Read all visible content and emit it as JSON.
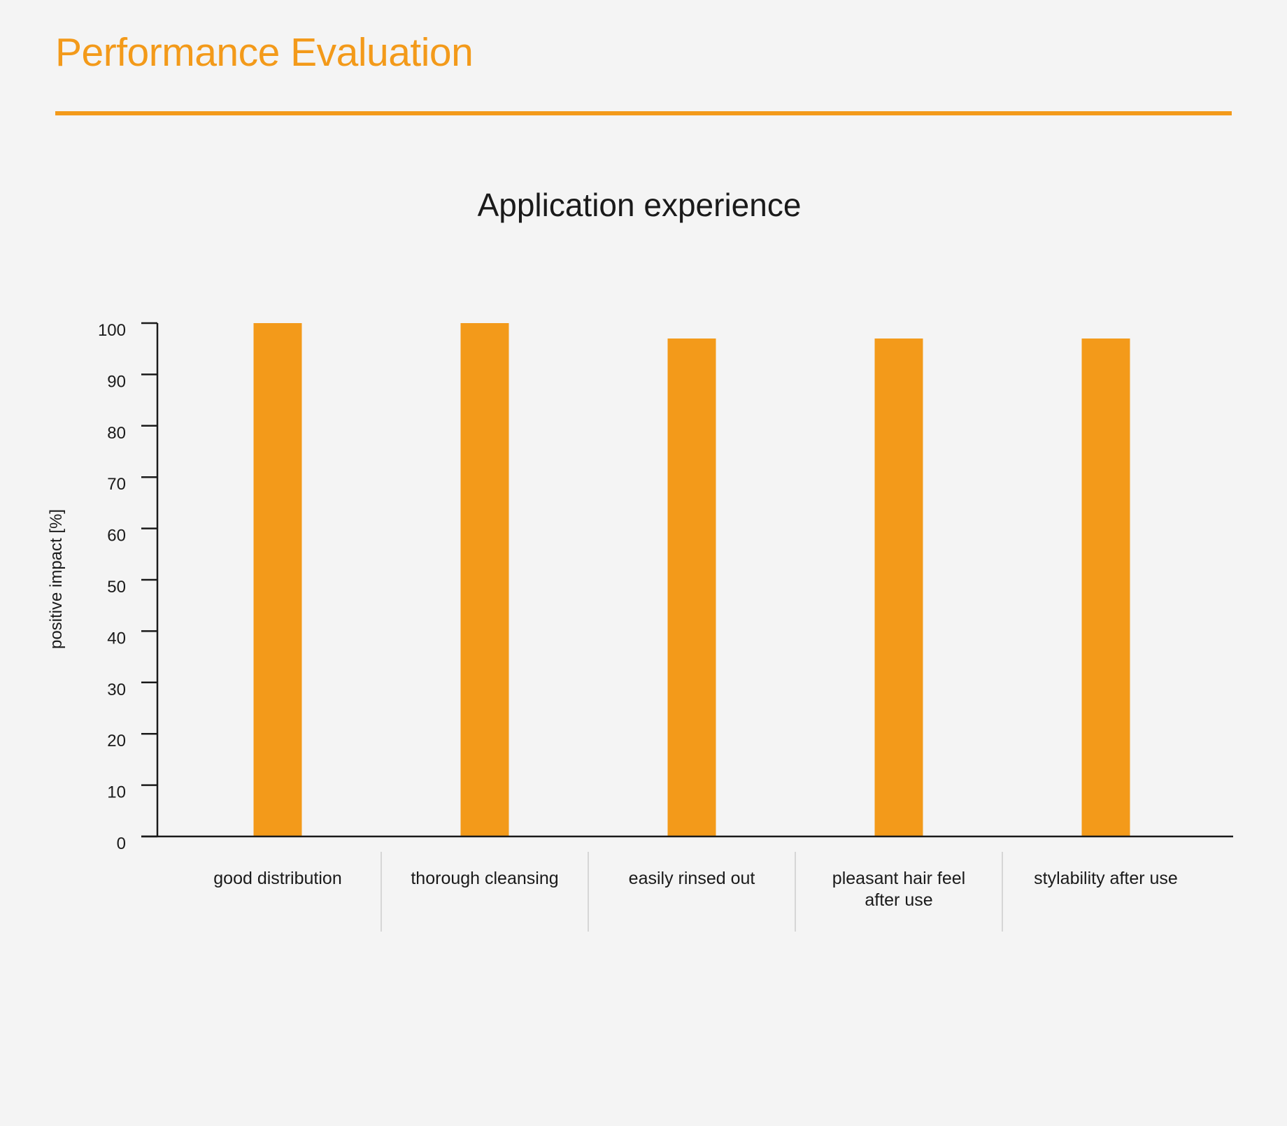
{
  "header": {
    "title": "Performance Evaluation"
  },
  "colors": {
    "accent": "#f39a1a",
    "axis": "#1a1a1a",
    "separator": "#cccccc",
    "background": "#f4f4f4"
  },
  "chart_data": {
    "type": "bar",
    "title": "Application experience",
    "xlabel": "",
    "ylabel": "positive impact [%]",
    "categories": [
      [
        "good distribution"
      ],
      [
        "thorough cleansing"
      ],
      [
        "easily rinsed out"
      ],
      [
        "pleasant hair feel",
        "after use"
      ],
      [
        "stylability after use"
      ]
    ],
    "values": [
      100,
      100,
      97,
      97,
      97
    ],
    "ylim": [
      0,
      100
    ],
    "yticks": [
      "0",
      "10",
      "20",
      "30",
      "40",
      "50",
      "60",
      "70",
      "80",
      "90",
      "100"
    ],
    "grid": false,
    "legend": "none"
  }
}
